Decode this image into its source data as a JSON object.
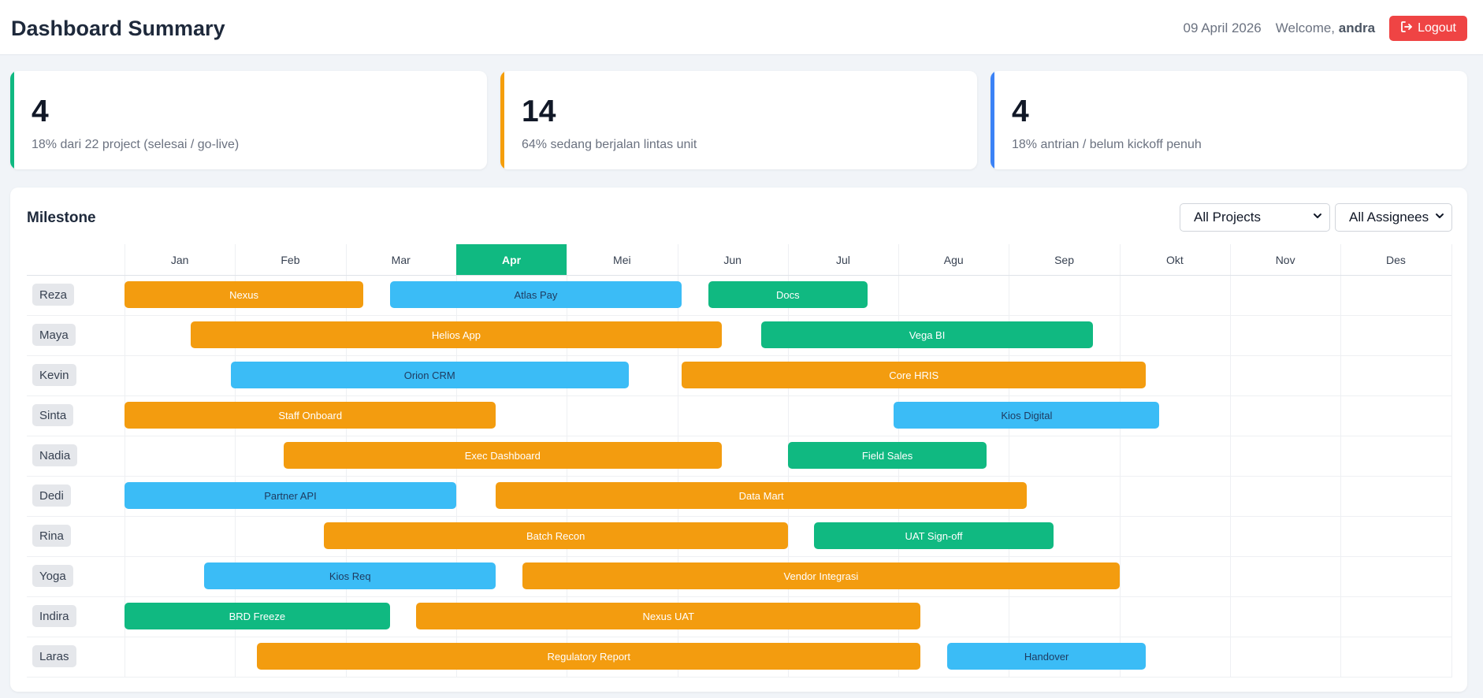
{
  "header": {
    "title": "Dashboard Summary",
    "date": "09 April 2026",
    "welcome_prefix": "Welcome,",
    "username": "andra",
    "logout_label": "Logout",
    "logout_icon": "sign-out-icon"
  },
  "stats": [
    {
      "value": "4",
      "description": "18% dari 22 project (selesai / go-live)",
      "accent": "#10b981"
    },
    {
      "value": "14",
      "description": "64% sedang berjalan lintas unit",
      "accent": "#f59e0b"
    },
    {
      "value": "4",
      "description": "18% antrian / belum kickoff penuh",
      "accent": "#3b82f6"
    }
  ],
  "milestone": {
    "title": "Milestone",
    "filters": {
      "projects": {
        "selected": "All Projects"
      },
      "assignees": {
        "selected": "All Assignees"
      }
    },
    "months": [
      "Jan",
      "Feb",
      "Mar",
      "Apr",
      "Mei",
      "Jun",
      "Jul",
      "Agu",
      "Sep",
      "Okt",
      "Nov",
      "Des"
    ],
    "current_month": "Apr",
    "colors": {
      "orange": "#f39c0f",
      "blue": "#3bbcf6",
      "green": "#10b981"
    },
    "rows": [
      {
        "name": "Reza",
        "bars": [
          {
            "label": "Nexus",
            "color": "orange",
            "start_month": 0.0,
            "end_month": 2.16
          },
          {
            "label": "Atlas Pay",
            "color": "blue",
            "start_month": 2.4,
            "end_month": 5.04
          },
          {
            "label": "Docs",
            "color": "green",
            "start_month": 5.28,
            "end_month": 6.72
          }
        ]
      },
      {
        "name": "Maya",
        "bars": [
          {
            "label": "Helios App",
            "color": "orange",
            "start_month": 0.6,
            "end_month": 5.4
          },
          {
            "label": "Vega BI",
            "color": "green",
            "start_month": 5.76,
            "end_month": 8.76
          }
        ]
      },
      {
        "name": "Kevin",
        "bars": [
          {
            "label": "Orion CRM",
            "color": "blue",
            "start_month": 0.96,
            "end_month": 4.56
          },
          {
            "label": "Core HRIS",
            "color": "orange",
            "start_month": 5.04,
            "end_month": 9.24
          }
        ]
      },
      {
        "name": "Sinta",
        "bars": [
          {
            "label": "Staff Onboard",
            "color": "orange",
            "start_month": 0.0,
            "end_month": 3.36
          },
          {
            "label": "Kios Digital",
            "color": "blue",
            "start_month": 6.96,
            "end_month": 9.36
          }
        ]
      },
      {
        "name": "Nadia",
        "bars": [
          {
            "label": "Exec Dashboard",
            "color": "orange",
            "start_month": 1.44,
            "end_month": 5.4
          },
          {
            "label": "Field Sales",
            "color": "green",
            "start_month": 6.0,
            "end_month": 7.8
          }
        ]
      },
      {
        "name": "Dedi",
        "bars": [
          {
            "label": "Partner API",
            "color": "blue",
            "start_month": 0.0,
            "end_month": 3.0
          },
          {
            "label": "Data Mart",
            "color": "orange",
            "start_month": 3.36,
            "end_month": 8.16
          }
        ]
      },
      {
        "name": "Rina",
        "bars": [
          {
            "label": "Batch Recon",
            "color": "orange",
            "start_month": 1.8,
            "end_month": 6.0
          },
          {
            "label": "UAT Sign-off",
            "color": "green",
            "start_month": 6.24,
            "end_month": 8.4
          }
        ]
      },
      {
        "name": "Yoga",
        "bars": [
          {
            "label": "Kios Req",
            "color": "blue",
            "start_month": 0.72,
            "end_month": 3.36
          },
          {
            "label": "Vendor Integrasi",
            "color": "orange",
            "start_month": 3.6,
            "end_month": 9.0
          }
        ]
      },
      {
        "name": "Indira",
        "bars": [
          {
            "label": "BRD Freeze",
            "color": "green",
            "start_month": 0.0,
            "end_month": 2.4
          },
          {
            "label": "Nexus UAT",
            "color": "orange",
            "start_month": 2.64,
            "end_month": 7.2
          }
        ]
      },
      {
        "name": "Laras",
        "bars": [
          {
            "label": "Regulatory Report",
            "color": "orange",
            "start_month": 1.2,
            "end_month": 7.2
          },
          {
            "label": "Handover",
            "color": "blue",
            "start_month": 7.44,
            "end_month": 9.24
          }
        ]
      }
    ]
  }
}
